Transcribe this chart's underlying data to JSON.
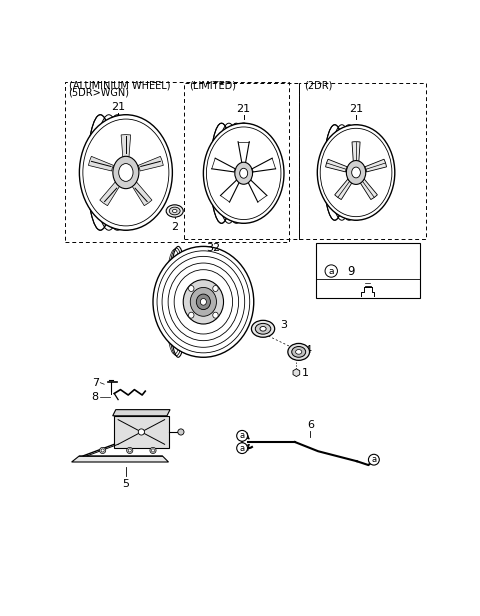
{
  "bg": "#ffffff",
  "lc": "#000000",
  "labels": {
    "title1": "(ALUMINIUM WHEEL)",
    "title2": "(5DR>WGN)",
    "limited": "(LIMITED)",
    "twodr": "(2DR)",
    "n21": "21",
    "n2": "2",
    "n32": "32",
    "n3": "3",
    "n4": "4",
    "n1": "1",
    "n9": "9",
    "na": "a",
    "n7": "7",
    "n8": "8",
    "n5": "5",
    "n6": "6"
  }
}
